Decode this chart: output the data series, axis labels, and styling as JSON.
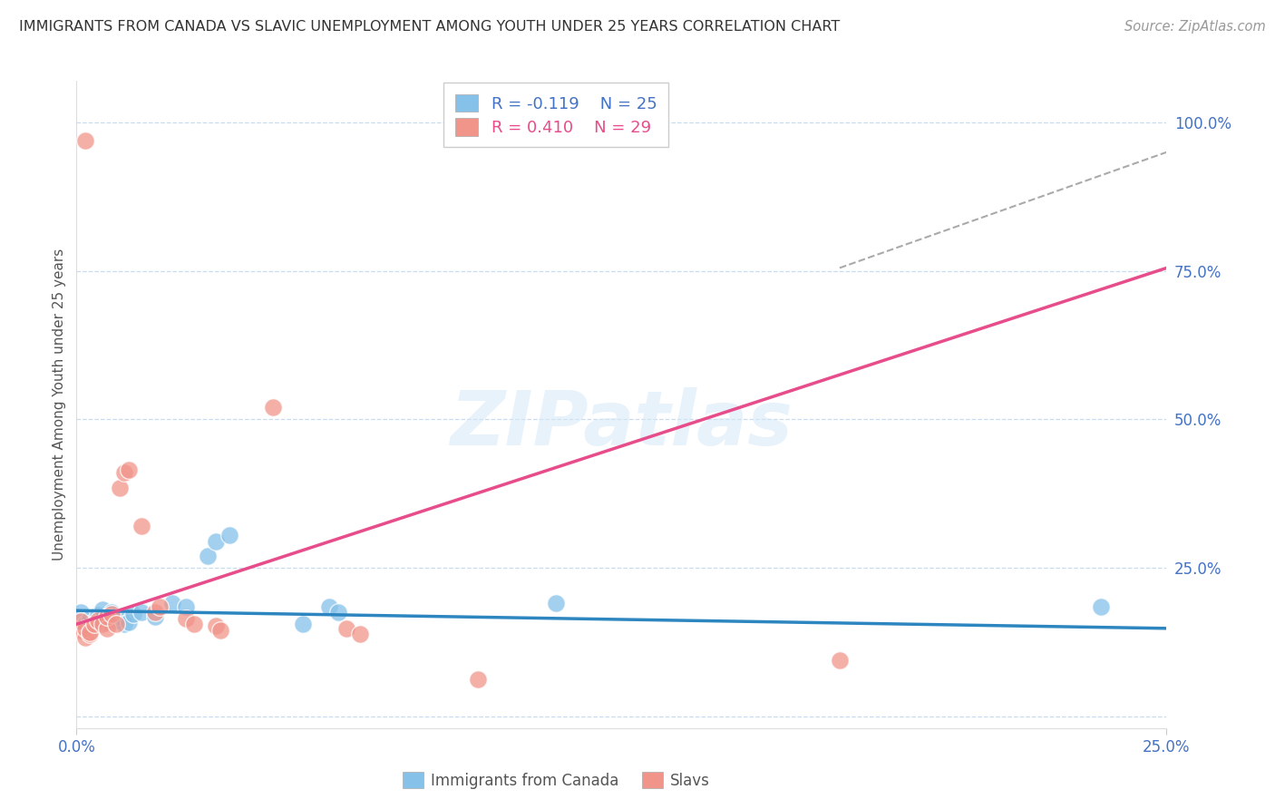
{
  "title": "IMMIGRANTS FROM CANADA VS SLAVIC UNEMPLOYMENT AMONG YOUTH UNDER 25 YEARS CORRELATION CHART",
  "source": "Source: ZipAtlas.com",
  "ylabel": "Unemployment Among Youth under 25 years",
  "y_ticks": [
    0.0,
    0.25,
    0.5,
    0.75,
    1.0
  ],
  "y_tick_labels": [
    "",
    "25.0%",
    "50.0%",
    "75.0%",
    "100.0%"
  ],
  "x_lim": [
    0.0,
    0.25
  ],
  "y_lim": [
    -0.02,
    1.07
  ],
  "watermark": "ZIPatlas",
  "legend_blue_R": "R = -0.119",
  "legend_blue_N": "N = 25",
  "legend_pink_R": "R = 0.410",
  "legend_pink_N": "N = 29",
  "blue_color": "#85C1E9",
  "pink_color": "#F1948A",
  "blue_line_color": "#2E86C1",
  "pink_line_color": "#E74C8B",
  "scatter_blue": [
    [
      0.001,
      0.175
    ],
    [
      0.002,
      0.155
    ],
    [
      0.003,
      0.165
    ],
    [
      0.004,
      0.16
    ],
    [
      0.005,
      0.17
    ],
    [
      0.006,
      0.18
    ],
    [
      0.007,
      0.158
    ],
    [
      0.008,
      0.175
    ],
    [
      0.009,
      0.162
    ],
    [
      0.01,
      0.168
    ],
    [
      0.011,
      0.155
    ],
    [
      0.012,
      0.158
    ],
    [
      0.013,
      0.172
    ],
    [
      0.015,
      0.175
    ],
    [
      0.018,
      0.168
    ],
    [
      0.022,
      0.19
    ],
    [
      0.025,
      0.185
    ],
    [
      0.03,
      0.27
    ],
    [
      0.032,
      0.295
    ],
    [
      0.035,
      0.305
    ],
    [
      0.052,
      0.155
    ],
    [
      0.058,
      0.185
    ],
    [
      0.06,
      0.175
    ],
    [
      0.11,
      0.19
    ],
    [
      0.235,
      0.185
    ]
  ],
  "scatter_pink": [
    [
      0.001,
      0.145
    ],
    [
      0.001,
      0.16
    ],
    [
      0.002,
      0.132
    ],
    [
      0.002,
      0.148
    ],
    [
      0.003,
      0.138
    ],
    [
      0.003,
      0.142
    ],
    [
      0.004,
      0.155
    ],
    [
      0.005,
      0.162
    ],
    [
      0.006,
      0.155
    ],
    [
      0.007,
      0.148
    ],
    [
      0.007,
      0.168
    ],
    [
      0.008,
      0.172
    ],
    [
      0.009,
      0.155
    ],
    [
      0.01,
      0.385
    ],
    [
      0.011,
      0.41
    ],
    [
      0.012,
      0.415
    ],
    [
      0.015,
      0.32
    ],
    [
      0.018,
      0.175
    ],
    [
      0.019,
      0.185
    ],
    [
      0.025,
      0.165
    ],
    [
      0.027,
      0.155
    ],
    [
      0.032,
      0.152
    ],
    [
      0.033,
      0.145
    ],
    [
      0.045,
      0.52
    ],
    [
      0.062,
      0.148
    ],
    [
      0.065,
      0.138
    ],
    [
      0.092,
      0.062
    ],
    [
      0.175,
      0.095
    ],
    [
      0.002,
      0.97
    ]
  ],
  "blue_trend_x": [
    0.0,
    0.25
  ],
  "blue_trend_y": [
    0.178,
    0.148
  ],
  "pink_trend_x": [
    0.0,
    0.25
  ],
  "pink_trend_y": [
    0.155,
    0.755
  ],
  "grey_trend_x": [
    0.175,
    0.25
  ],
  "grey_trend_y": [
    0.755,
    0.95
  ]
}
